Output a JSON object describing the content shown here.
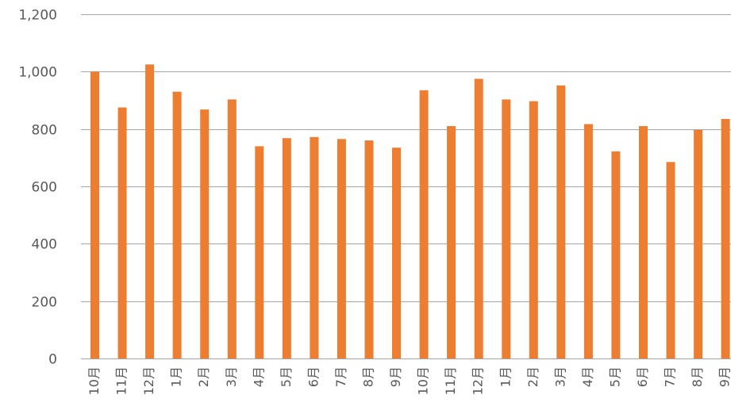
{
  "chart_data": {
    "type": "bar",
    "title": "",
    "xlabel": "",
    "ylabel": "",
    "ylim": [
      0,
      1200
    ],
    "yticks": [
      0,
      200,
      400,
      600,
      800,
      1000,
      1200
    ],
    "ytick_labels": [
      "0",
      "200",
      "400",
      "600",
      "800",
      "1,000",
      "1,200"
    ],
    "grid": true,
    "legend": "none",
    "bar_color": "#ED7D31",
    "categories": [
      "10月",
      "11月",
      "12月",
      "1月",
      "2月",
      "3月",
      "4月",
      "5月",
      "6月",
      "7月",
      "8月",
      "9月",
      "10月",
      "11月",
      "12月",
      "1月",
      "2月",
      "3月",
      "4月",
      "5月",
      "6月",
      "7月",
      "8月",
      "9月"
    ],
    "values": [
      1000,
      875,
      1025,
      930,
      868,
      903,
      740,
      768,
      772,
      765,
      760,
      735,
      935,
      810,
      975,
      903,
      897,
      952,
      817,
      722,
      810,
      685,
      797,
      835
    ]
  }
}
